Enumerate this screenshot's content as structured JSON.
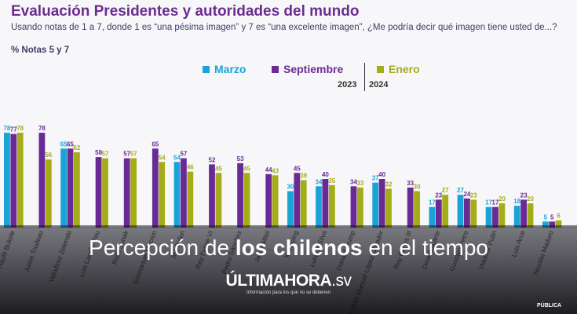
{
  "title": "Evaluación Presidentes y autoridades del mundo",
  "subtitle": "Usando notas de 1 a 7, donde 1 es “una pésima imagen” y 7 es “una excelente imagen”, ¿Me podría decir qué imagen tiene usted de...?",
  "note": "% Notas 5 y 7",
  "legend": {
    "marzo": "Marzo",
    "septiembre": "Septiembre",
    "enero": "Enero",
    "year_2023": "2023",
    "year_2024": "2024"
  },
  "colors": {
    "marzo": "#1aa3d6",
    "septiembre": "#6a2a95",
    "enero": "#a4ac17"
  },
  "caption": {
    "headline_pre": "Percepción de ",
    "headline_bold": "los chilenos",
    "headline_post": " en el tiempo",
    "brand": "ÚLTIMAHORA",
    "brand_suffix": ".sv",
    "tagline": "Información para los que no se detienen",
    "source": "PÚBLICA"
  },
  "chart_data": {
    "type": "bar",
    "categories": [
      "Nayib Bukele",
      "Justin Trudeau",
      "Volodímir Zelenski",
      "Luis Lacalle Pou",
      "Rishi Sunak",
      "Emmanuel Macron",
      "Joe Biden",
      "Rey Felipe VI de España",
      "Pedro Sánchez",
      "Javier Milei",
      "Xi Jinping",
      "Lula da Silva",
      "Donald Trump",
      "Andrés Manuel López Obrador",
      "Rey Carlos III de Inglaterra",
      "Dina Boluarte",
      "Gustavo Petro",
      "Vladimir Putin",
      "Luis Arce",
      "Nicolás Maduro"
    ],
    "category_labels": [
      "Nayib Bukele",
      "Justin Trudeau",
      "Volodímir Zelenski",
      "Luis Lacalle Pou",
      "Rishi Sunak",
      "Emmanuel Macron",
      "Joe Biden",
      "Rey Felipe VI",
      "Pedro Sánchez",
      "Javier Milei",
      "Xi Jinping",
      "Lula da Silva",
      "Donald Trump",
      "Andrés Manuel López Obrador",
      "Rey Carlos III",
      "Dina Boluarte",
      "Gustavo Petro",
      "Vladimir Putin",
      "Luis Arce",
      "Nicolás Maduro"
    ],
    "series": [
      {
        "name": "Marzo",
        "values": [
          78,
          null,
          65,
          null,
          null,
          null,
          54,
          null,
          null,
          null,
          30,
          34,
          null,
          37,
          null,
          17,
          27,
          17,
          18,
          5
        ]
      },
      {
        "name": "Septiembre",
        "values": [
          77,
          78,
          65,
          58,
          57,
          65,
          57,
          52,
          53,
          44,
          45,
          40,
          34,
          40,
          33,
          23,
          24,
          17,
          23,
          5
        ]
      },
      {
        "name": "Enero",
        "values": [
          78,
          56,
          62,
          57,
          57,
          54,
          46,
          45,
          45,
          43,
          39,
          35,
          33,
          32,
          30,
          27,
          23,
          20,
          20,
          6
        ]
      }
    ],
    "ylim": [
      0,
      100
    ]
  }
}
